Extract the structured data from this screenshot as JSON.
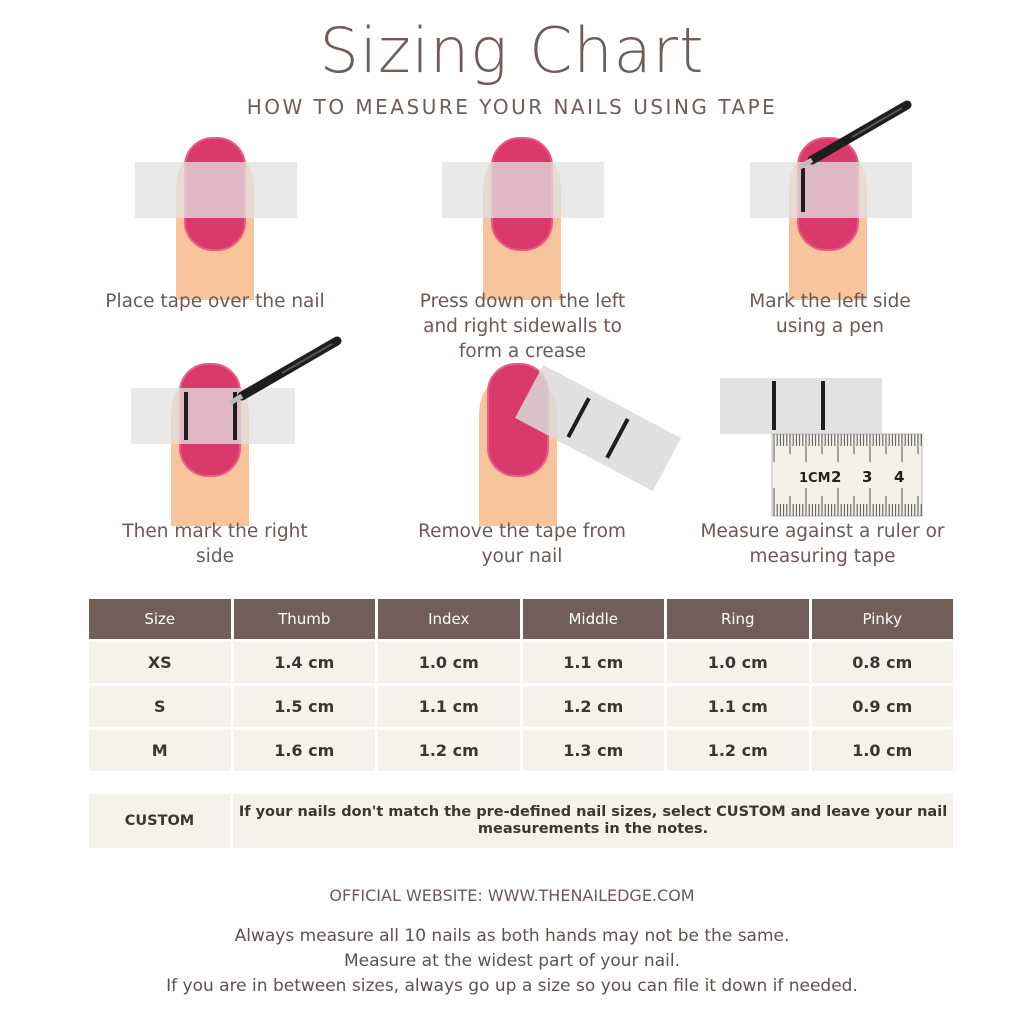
{
  "header": {
    "title": "Sizing Chart",
    "subtitle": "HOW TO MEASURE YOUR NAILS USING TAPE"
  },
  "steps": [
    {
      "caption": "Place tape over the nail"
    },
    {
      "caption": "Press down on the left and right sidewalls to form a crease"
    },
    {
      "caption": "Mark the left side using a pen"
    },
    {
      "caption": "Then mark the right side"
    },
    {
      "caption": "Remove the tape from your nail"
    },
    {
      "caption": "Measure against a ruler or measuring tape"
    }
  ],
  "ruler": {
    "unit_label": "1CM",
    "ticks": [
      "2",
      "3",
      "4"
    ]
  },
  "colors": {
    "nail": "#d93a6b",
    "skin": "#f8c49c",
    "tape": "#e2e2e2",
    "header_bg": "#725e58",
    "cell_bg": "#f5f2ec",
    "text": "#6b5a55"
  },
  "table": {
    "headers": [
      "Size",
      "Thumb",
      "Index",
      "Middle",
      "Ring",
      "Pinky"
    ],
    "rows": [
      [
        "XS",
        "1.4 cm",
        "1.0 cm",
        "1.1 cm",
        "1.0 cm",
        "0.8 cm"
      ],
      [
        "S",
        "1.5 cm",
        "1.1 cm",
        "1.2 cm",
        "1.1 cm",
        "0.9 cm"
      ],
      [
        "M",
        "1.6 cm",
        "1.2 cm",
        "1.3 cm",
        "1.2 cm",
        "1.0 cm"
      ]
    ],
    "custom": {
      "label": "CUSTOM",
      "message": "If your nails don't match the pre-defined nail sizes, select CUSTOM and leave your nail measurements in the notes."
    }
  },
  "footer": {
    "website": "OFFICIAL WEBSITE: WWW.THENAILEDGE.COM",
    "notes": [
      "Always measure all 10 nails as both hands may not be the same.",
      "Measure at the widest part of your nail.",
      "If you are in between sizes, always go up a size so you can file it down if needed."
    ]
  }
}
